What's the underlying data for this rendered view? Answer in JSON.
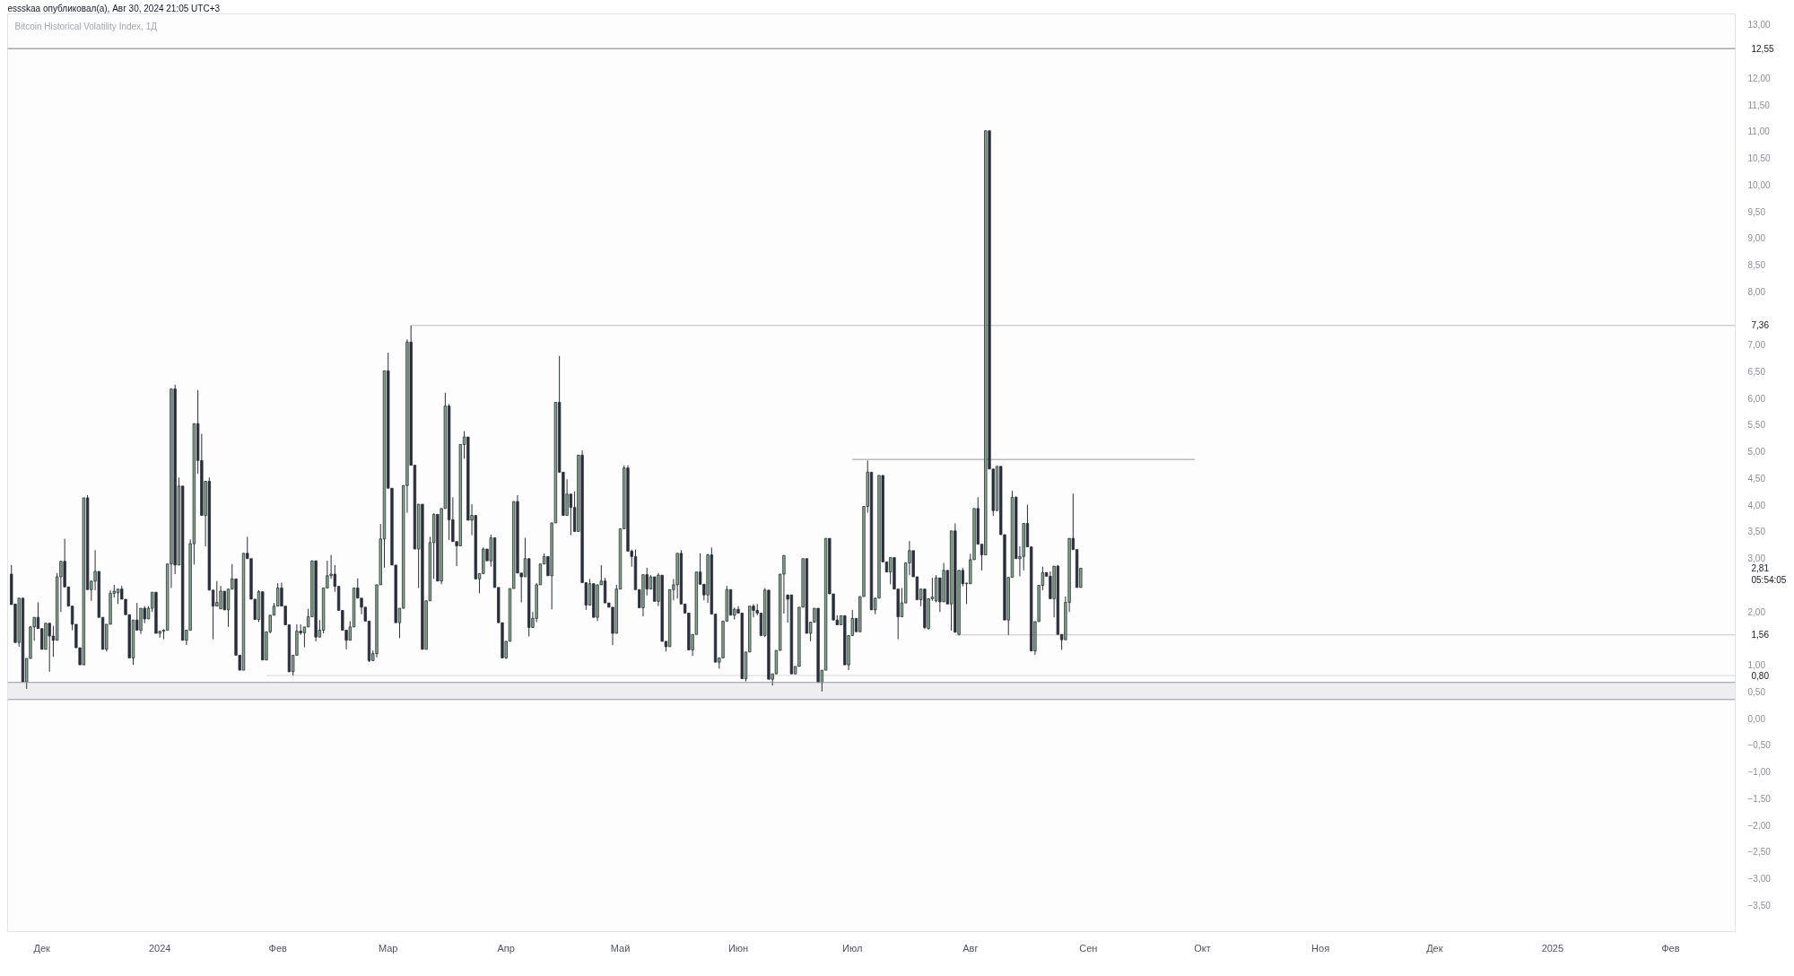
{
  "chart_data": {
    "type": "candlestick",
    "title": "Bitcoin Historical Volatility Index, 1Д",
    "annotations": [
      "essskaa опубликовал(а), Авг 30, 2024 21:05 UTC+3",
      "2,81",
      "05:54:05"
    ],
    "xlim": [
      "2023-11-22",
      "2025-02-18"
    ],
    "ylim": [
      -4.0,
      13.2
    ],
    "xticks": [
      {
        "value": "2023-12-01",
        "label": "Дек"
      },
      {
        "value": "2024-01-01",
        "label": "2024"
      },
      {
        "value": "2024-02-01",
        "label": "Фев"
      },
      {
        "value": "2024-03-01",
        "label": "Мар"
      },
      {
        "value": "2024-04-01",
        "label": "Апр"
      },
      {
        "value": "2024-05-01",
        "label": "Май"
      },
      {
        "value": "2024-06-01",
        "label": "Июн"
      },
      {
        "value": "2024-07-01",
        "label": "Июл"
      },
      {
        "value": "2024-08-01",
        "label": "Авг"
      },
      {
        "value": "2024-09-01",
        "label": "Сен"
      },
      {
        "value": "2024-10-01",
        "label": "Окт"
      },
      {
        "value": "2024-11-01",
        "label": "Ноя"
      },
      {
        "value": "2024-12-01",
        "label": "Дек"
      },
      {
        "value": "2025-01-01",
        "label": "2025"
      },
      {
        "value": "2025-02-01",
        "label": "Фев"
      }
    ],
    "yticks": [
      {
        "value": 13,
        "label": "13,00"
      },
      {
        "value": 12,
        "label": "12,00"
      },
      {
        "value": 11.5,
        "label": "11,50"
      },
      {
        "value": 11,
        "label": "11,00"
      },
      {
        "value": 10.5,
        "label": "10,50"
      },
      {
        "value": 10,
        "label": "10,00"
      },
      {
        "value": 9.5,
        "label": "9,50"
      },
      {
        "value": 9,
        "label": "9,00"
      },
      {
        "value": 8.5,
        "label": "8,50"
      },
      {
        "value": 8,
        "label": "8,00"
      },
      {
        "value": 7,
        "label": "7,00"
      },
      {
        "value": 6.5,
        "label": "6,50"
      },
      {
        "value": 6,
        "label": "6,00"
      },
      {
        "value": 5.5,
        "label": "5,50"
      },
      {
        "value": 5,
        "label": "5,00"
      },
      {
        "value": 4.5,
        "label": "4,50"
      },
      {
        "value": 4,
        "label": "4,00"
      },
      {
        "value": 3.5,
        "label": "3,50"
      },
      {
        "value": 3,
        "label": "3,00"
      },
      {
        "value": 2,
        "label": "2,00"
      },
      {
        "value": 1,
        "label": "1,00"
      },
      {
        "value": 0.5,
        "label": "0,50"
      },
      {
        "value": 0,
        "label": "0,00"
      },
      {
        "value": -0.5,
        "label": "−0,50"
      },
      {
        "value": -1,
        "label": "−1,00"
      },
      {
        "value": -1.5,
        "label": "−1,50"
      },
      {
        "value": -2,
        "label": "−2,00"
      },
      {
        "value": -2.5,
        "label": "−2,50"
      },
      {
        "value": -3,
        "label": "−3,00"
      },
      {
        "value": -3.5,
        "label": "−3,50"
      }
    ],
    "ref_lines": [
      {
        "axis": "y",
        "value": 12.55,
        "label": "12,55",
        "color": "#787b86"
      },
      {
        "axis": "y",
        "value": 0.67,
        "color": "#9598a1"
      },
      {
        "axis": "y",
        "value": 0.35,
        "color": "#9598a1"
      }
    ],
    "bands": [
      {
        "axis": "y",
        "from": 0.35,
        "to": 0.67,
        "color": "#eeeef0"
      }
    ],
    "series": [
      {
        "type": "line",
        "x": [
          "2024-03-07",
          "2025-02-18"
        ],
        "values": [
          7.36,
          7.36
        ],
        "value_labels": [
          null,
          "7,36"
        ],
        "color": "#b8bac1"
      },
      {
        "type": "line",
        "x": [
          "2024-07-01",
          "2024-09-29"
        ],
        "values": [
          4.85,
          4.85
        ],
        "color": "#9598a1"
      },
      {
        "type": "line",
        "x": [
          "2024-07-28",
          "2025-02-18"
        ],
        "values": [
          1.56,
          1.56
        ],
        "value_labels": [
          null,
          "1,56"
        ],
        "color": "#c4c6cc"
      },
      {
        "type": "line",
        "x": [
          "2024-01-29",
          "2025-02-18"
        ],
        "values": [
          0.8,
          0.8
        ],
        "value_labels": [
          null,
          "0,80"
        ],
        "color": "#d6d8de"
      }
    ],
    "x": [
      "2023-11-23",
      "2023-11-24",
      "2023-11-25",
      "2023-11-26",
      "2023-11-27",
      "2023-11-28",
      "2023-11-29",
      "2023-11-30",
      "2023-12-01",
      "2023-12-02",
      "2023-12-03",
      "2023-12-04",
      "2023-12-05",
      "2023-12-06",
      "2023-12-07",
      "2023-12-08",
      "2023-12-09",
      "2023-12-10",
      "2023-12-11",
      "2023-12-12",
      "2023-12-13",
      "2023-12-14",
      "2023-12-15",
      "2023-12-16",
      "2023-12-17",
      "2023-12-18",
      "2023-12-19",
      "2023-12-20",
      "2023-12-21",
      "2023-12-22",
      "2023-12-23",
      "2023-12-24",
      "2023-12-25",
      "2023-12-26",
      "2023-12-27",
      "2023-12-28",
      "2023-12-29",
      "2023-12-30",
      "2023-12-31",
      "2024-01-01",
      "2024-01-02",
      "2024-01-03",
      "2024-01-04",
      "2024-01-05",
      "2024-01-06",
      "2024-01-07",
      "2024-01-08",
      "2024-01-09",
      "2024-01-10",
      "2024-01-11",
      "2024-01-12",
      "2024-01-13",
      "2024-01-14",
      "2024-01-15",
      "2024-01-16",
      "2024-01-17",
      "2024-01-18",
      "2024-01-19",
      "2024-01-20",
      "2024-01-21",
      "2024-01-22",
      "2024-01-23",
      "2024-01-24",
      "2024-01-25",
      "2024-01-26",
      "2024-01-27",
      "2024-01-28",
      "2024-01-29",
      "2024-01-30",
      "2024-01-31",
      "2024-02-01",
      "2024-02-02",
      "2024-02-03",
      "2024-02-04",
      "2024-02-05",
      "2024-02-06",
      "2024-02-07",
      "2024-02-08",
      "2024-02-09",
      "2024-02-10",
      "2024-02-11",
      "2024-02-12",
      "2024-02-13",
      "2024-02-14",
      "2024-02-15",
      "2024-02-16",
      "2024-02-17",
      "2024-02-18",
      "2024-02-19",
      "2024-02-20",
      "2024-02-21",
      "2024-02-22",
      "2024-02-23",
      "2024-02-24",
      "2024-02-25",
      "2024-02-26",
      "2024-02-27",
      "2024-02-28",
      "2024-02-29",
      "2024-03-01",
      "2024-03-02",
      "2024-03-03",
      "2024-03-04",
      "2024-03-05",
      "2024-03-06",
      "2024-03-07",
      "2024-03-08",
      "2024-03-09",
      "2024-03-10",
      "2024-03-11",
      "2024-03-12",
      "2024-03-13",
      "2024-03-14",
      "2024-03-15",
      "2024-03-16",
      "2024-03-17",
      "2024-03-18",
      "2024-03-19",
      "2024-03-20",
      "2024-03-21",
      "2024-03-22",
      "2024-03-23",
      "2024-03-24",
      "2024-03-25",
      "2024-03-26",
      "2024-03-27",
      "2024-03-28",
      "2024-03-29",
      "2024-03-30",
      "2024-03-31",
      "2024-04-01",
      "2024-04-02",
      "2024-04-03",
      "2024-04-04",
      "2024-04-05",
      "2024-04-06",
      "2024-04-07",
      "2024-04-08",
      "2024-04-09",
      "2024-04-10",
      "2024-04-11",
      "2024-04-12",
      "2024-04-13",
      "2024-04-14",
      "2024-04-15",
      "2024-04-16",
      "2024-04-17",
      "2024-04-18",
      "2024-04-19",
      "2024-04-20",
      "2024-04-21",
      "2024-04-22",
      "2024-04-23",
      "2024-04-24",
      "2024-04-25",
      "2024-04-26",
      "2024-04-27",
      "2024-04-28",
      "2024-04-29",
      "2024-04-30",
      "2024-05-01",
      "2024-05-02",
      "2024-05-03",
      "2024-05-04",
      "2024-05-05",
      "2024-05-06",
      "2024-05-07",
      "2024-05-08",
      "2024-05-09",
      "2024-05-10",
      "2024-05-11",
      "2024-05-12",
      "2024-05-13",
      "2024-05-14",
      "2024-05-15",
      "2024-05-16",
      "2024-05-17",
      "2024-05-18",
      "2024-05-19",
      "2024-05-20",
      "2024-05-21",
      "2024-05-22",
      "2024-05-23",
      "2024-05-24",
      "2024-05-25",
      "2024-05-26",
      "2024-05-27",
      "2024-05-28",
      "2024-05-29",
      "2024-05-30",
      "2024-05-31",
      "2024-06-01",
      "2024-06-02",
      "2024-06-03",
      "2024-06-04",
      "2024-06-05",
      "2024-06-06",
      "2024-06-07",
      "2024-06-08",
      "2024-06-09",
      "2024-06-10",
      "2024-06-11",
      "2024-06-12",
      "2024-06-13",
      "2024-06-14",
      "2024-06-15",
      "2024-06-16",
      "2024-06-17",
      "2024-06-18",
      "2024-06-19",
      "2024-06-20",
      "2024-06-21",
      "2024-06-22",
      "2024-06-23",
      "2024-06-24",
      "2024-06-25",
      "2024-06-26",
      "2024-06-27",
      "2024-06-28",
      "2024-06-29",
      "2024-06-30",
      "2024-07-01",
      "2024-07-02",
      "2024-07-03",
      "2024-07-04",
      "2024-07-05",
      "2024-07-06",
      "2024-07-07",
      "2024-07-08",
      "2024-07-09",
      "2024-07-10",
      "2024-07-11",
      "2024-07-12",
      "2024-07-13",
      "2024-07-14",
      "2024-07-15",
      "2024-07-16",
      "2024-07-17",
      "2024-07-18",
      "2024-07-19",
      "2024-07-20",
      "2024-07-21",
      "2024-07-22",
      "2024-07-23",
      "2024-07-24",
      "2024-07-25",
      "2024-07-26",
      "2024-07-27",
      "2024-07-28",
      "2024-07-29",
      "2024-07-30",
      "2024-07-31",
      "2024-08-01",
      "2024-08-02",
      "2024-08-03",
      "2024-08-04",
      "2024-08-05",
      "2024-08-06",
      "2024-08-07",
      "2024-08-08",
      "2024-08-09",
      "2024-08-10",
      "2024-08-11",
      "2024-08-12",
      "2024-08-13",
      "2024-08-14",
      "2024-08-15",
      "2024-08-16",
      "2024-08-17",
      "2024-08-18",
      "2024-08-19",
      "2024-08-20",
      "2024-08-21",
      "2024-08-22",
      "2024-08-23",
      "2024-08-24",
      "2024-08-25",
      "2024-08-26",
      "2024-08-27",
      "2024-08-28",
      "2024-08-29",
      "2024-08-30"
    ],
    "ohlc": [
      [
        2.7,
        2.87,
        2.13,
        2.13
      ],
      [
        2.14,
        2.14,
        1.41,
        1.42
      ],
      [
        1.42,
        2.25,
        1.34,
        2.25
      ],
      [
        2.25,
        2.25,
        0.68,
        0.68
      ],
      [
        0.68,
        1.12,
        0.55,
        1.12
      ],
      [
        1.12,
        1.73,
        1.12,
        1.71
      ],
      [
        1.71,
        1.89,
        1.45,
        1.89
      ],
      [
        1.89,
        2.17,
        1.68,
        1.68
      ],
      [
        1.68,
        1.68,
        1.29,
        1.29
      ],
      [
        1.29,
        1.78,
        1.29,
        1.78
      ],
      [
        1.78,
        1.78,
        0.87,
        1.54
      ],
      [
        1.54,
        1.73,
        1.15,
        1.46
      ],
      [
        1.46,
        2.72,
        1.46,
        2.65
      ],
      [
        2.65,
        2.94,
        1.99,
        2.94
      ],
      [
        2.94,
        3.36,
        2.46,
        2.46
      ],
      [
        2.46,
        2.46,
        2.1,
        2.1
      ],
      [
        2.1,
        2.1,
        1.65,
        1.76
      ],
      [
        1.76,
        1.76,
        1.32,
        1.32
      ],
      [
        1.32,
        1.32,
        1.0,
        1.0
      ],
      [
        1.0,
        4.13,
        1.0,
        4.13
      ],
      [
        4.13,
        4.18,
        2.41,
        2.41
      ],
      [
        2.41,
        2.57,
        2.2,
        2.57
      ],
      [
        2.57,
        3.15,
        2.4,
        2.75
      ],
      [
        2.75,
        2.75,
        1.89,
        1.89
      ],
      [
        1.89,
        1.89,
        1.29,
        1.29
      ],
      [
        1.29,
        1.76,
        1.25,
        1.76
      ],
      [
        1.76,
        2.4,
        1.76,
        2.34
      ],
      [
        2.34,
        2.5,
        2.26,
        2.38
      ],
      [
        2.35,
        2.42,
        2.14,
        2.42
      ],
      [
        2.42,
        2.48,
        2.23,
        2.23
      ],
      [
        2.23,
        2.23,
        1.94,
        1.94
      ],
      [
        1.94,
        1.94,
        1.13,
        1.13
      ],
      [
        1.13,
        1.84,
        1.0,
        1.84
      ],
      [
        1.84,
        2.16,
        1.65,
        1.65
      ],
      [
        1.65,
        2.06,
        1.58,
        2.06
      ],
      [
        2.06,
        2.1,
        1.78,
        1.86
      ],
      [
        1.86,
        2.1,
        1.86,
        2.06
      ],
      [
        2.06,
        2.36,
        1.99,
        2.36
      ],
      [
        2.36,
        2.36,
        1.59,
        1.59
      ],
      [
        1.59,
        1.63,
        1.51,
        1.63
      ],
      [
        1.63,
        1.67,
        1.48,
        1.65
      ],
      [
        1.65,
        2.89,
        1.65,
        2.89
      ],
      [
        2.89,
        6.17,
        2.44,
        6.17
      ],
      [
        6.17,
        6.25,
        2.7,
        2.87
      ],
      [
        2.87,
        4.51,
        2.87,
        4.35
      ],
      [
        4.35,
        4.35,
        1.46,
        1.46
      ],
      [
        1.46,
        1.65,
        1.37,
        1.65
      ],
      [
        1.65,
        3.35,
        1.65,
        3.27
      ],
      [
        3.27,
        5.52,
        2.88,
        5.52
      ],
      [
        5.52,
        6.15,
        4.58,
        4.83
      ],
      [
        4.83,
        5.33,
        3.8,
        3.8
      ],
      [
        3.8,
        4.44,
        3.22,
        4.44
      ],
      [
        4.44,
        4.51,
        2.4,
        2.4
      ],
      [
        2.4,
        2.4,
        1.48,
        2.1
      ],
      [
        2.1,
        2.57,
        2.1,
        2.17
      ],
      [
        2.05,
        2.48,
        2.05,
        2.38
      ],
      [
        2.38,
        2.38,
        2.03,
        2.03
      ],
      [
        2.03,
        2.42,
        1.71,
        2.42
      ],
      [
        2.42,
        2.89,
        2.42,
        2.61
      ],
      [
        2.61,
        2.61,
        1.18,
        1.18
      ],
      [
        1.18,
        1.18,
        0.9,
        0.9
      ],
      [
        0.9,
        3.09,
        0.9,
        3.09
      ],
      [
        3.09,
        3.4,
        2.99,
        2.99
      ],
      [
        2.99,
        2.99,
        2.23,
        2.23
      ],
      [
        2.23,
        2.23,
        1.85,
        1.85
      ],
      [
        1.85,
        2.4,
        1.8,
        2.37
      ],
      [
        2.37,
        2.37,
        1.09,
        1.09
      ],
      [
        1.09,
        1.62,
        1.09,
        1.62
      ],
      [
        1.62,
        1.93,
        1.59,
        1.93
      ],
      [
        1.93,
        2.16,
        1.93,
        2.1
      ],
      [
        2.1,
        2.53,
        2.1,
        2.44
      ],
      [
        2.44,
        2.54,
        2.1,
        2.1
      ],
      [
        2.1,
        2.1,
        1.75,
        1.75
      ],
      [
        1.75,
        1.75,
        0.87,
        0.87
      ],
      [
        0.87,
        1.18,
        0.8,
        1.18
      ],
      [
        1.18,
        1.76,
        1.18,
        1.63
      ],
      [
        1.63,
        1.76,
        1.56,
        1.6
      ],
      [
        1.6,
        1.71,
        1.33,
        1.71
      ],
      [
        1.71,
        2.05,
        1.71,
        1.9
      ],
      [
        1.9,
        2.95,
        1.9,
        2.95
      ],
      [
        2.95,
        2.95,
        1.44,
        1.52
      ],
      [
        1.52,
        1.84,
        1.52,
        1.65
      ],
      [
        1.65,
        2.44,
        1.59,
        2.44
      ],
      [
        2.44,
        2.95,
        2.44,
        2.67
      ],
      [
        2.67,
        3.06,
        2.61,
        2.7
      ],
      [
        2.7,
        2.87,
        2.37,
        2.47
      ],
      [
        2.47,
        2.47,
        2.02,
        2.02
      ],
      [
        2.02,
        2.02,
        1.65,
        1.65
      ],
      [
        1.65,
        1.65,
        1.29,
        1.46
      ],
      [
        1.46,
        1.82,
        1.46,
        1.71
      ],
      [
        1.71,
        2.44,
        1.71,
        2.44
      ],
      [
        2.44,
        2.62,
        2.25,
        2.25
      ],
      [
        2.25,
        2.25,
        1.95,
        2.08
      ],
      [
        2.08,
        2.08,
        1.82,
        1.82
      ],
      [
        1.82,
        1.82,
        1.05,
        1.08
      ],
      [
        1.08,
        1.27,
        1.08,
        1.21
      ],
      [
        1.21,
        2.5,
        1.14,
        2.5
      ],
      [
        2.5,
        3.64,
        2.5,
        3.36
      ],
      [
        3.36,
        6.51,
        2.82,
        6.51
      ],
      [
        6.51,
        6.85,
        4.31,
        4.31
      ],
      [
        4.31,
        4.31,
        2.87,
        2.87
      ],
      [
        2.87,
        2.87,
        1.79,
        1.79
      ],
      [
        1.79,
        2.06,
        1.5,
        2.06
      ],
      [
        2.06,
        4.36,
        2.06,
        4.36
      ],
      [
        4.36,
        7.1,
        3.85,
        7.05
      ],
      [
        7.05,
        7.36,
        4.74,
        4.74
      ],
      [
        4.74,
        4.74,
        3.17,
        3.17
      ],
      [
        3.17,
        4.01,
        2.44,
        4.01
      ],
      [
        4.01,
        4.01,
        1.29,
        1.29
      ],
      [
        1.29,
        2.2,
        1.29,
        2.2
      ],
      [
        2.2,
        3.4,
        2.2,
        3.29
      ],
      [
        3.29,
        3.84,
        2.61,
        3.82
      ],
      [
        3.82,
        3.82,
        2.57,
        2.57
      ],
      [
        2.57,
        3.93,
        2.51,
        3.93
      ],
      [
        3.93,
        6.1,
        3.93,
        5.85
      ],
      [
        5.85,
        5.89,
        3.34,
        3.72
      ],
      [
        3.72,
        4.14,
        3.31,
        3.31
      ],
      [
        3.31,
        3.31,
        2.85,
        3.23
      ],
      [
        3.23,
        5.13,
        3.23,
        5.13
      ],
      [
        5.13,
        5.38,
        4.86,
        5.27
      ],
      [
        5.27,
        5.27,
        3.71,
        3.71
      ],
      [
        3.71,
        4.01,
        3.43,
        3.8
      ],
      [
        3.8,
        3.8,
        2.61,
        2.61
      ],
      [
        2.61,
        2.71,
        2.34,
        2.71
      ],
      [
        2.71,
        3.2,
        2.71,
        3.17
      ],
      [
        3.17,
        3.17,
        2.95,
        2.95
      ],
      [
        2.95,
        3.44,
        2.84,
        3.38
      ],
      [
        3.38,
        3.38,
        2.45,
        2.45
      ],
      [
        2.45,
        2.45,
        1.79,
        1.79
      ],
      [
        1.79,
        1.79,
        1.13,
        1.13
      ],
      [
        1.13,
        1.44,
        1.11,
        1.44
      ],
      [
        1.44,
        2.43,
        1.44,
        2.43
      ],
      [
        2.43,
        4.06,
        2.43,
        4.06
      ],
      [
        4.06,
        4.18,
        2.72,
        2.72
      ],
      [
        2.72,
        2.72,
        2.17,
        2.65
      ],
      [
        2.65,
        3.38,
        2.65,
        2.99
      ],
      [
        2.99,
        2.99,
        1.53,
        1.7
      ],
      [
        1.7,
        1.99,
        1.7,
        1.87
      ],
      [
        1.87,
        2.53,
        1.8,
        2.5
      ],
      [
        2.5,
        2.89,
        2.5,
        2.89
      ],
      [
        2.89,
        3.09,
        2.89,
        3.03
      ],
      [
        3.03,
        3.03,
        2.67,
        2.67
      ],
      [
        2.67,
        3.66,
        2.04,
        3.66
      ],
      [
        3.66,
        5.92,
        3.66,
        5.92
      ],
      [
        5.92,
        6.79,
        4.61,
        4.61
      ],
      [
        4.61,
        4.61,
        3.8,
        3.8
      ],
      [
        3.8,
        4.48,
        3.8,
        4.2
      ],
      [
        4.2,
        4.2,
        3.43,
        3.95
      ],
      [
        3.95,
        4.25,
        3.5,
        3.5
      ],
      [
        3.5,
        4.93,
        3.5,
        4.93
      ],
      [
        4.93,
        5.02,
        2.54,
        2.54
      ],
      [
        2.54,
        2.54,
        2.03,
        2.12
      ],
      [
        2.12,
        2.61,
        2.12,
        2.52
      ],
      [
        2.52,
        2.52,
        1.89,
        1.89
      ],
      [
        1.89,
        2.5,
        1.82,
        2.5
      ],
      [
        2.5,
        2.87,
        2.5,
        2.57
      ],
      [
        2.57,
        2.63,
        2.16,
        2.16
      ],
      [
        2.16,
        2.16,
        2.08,
        2.08
      ],
      [
        2.08,
        2.08,
        1.37,
        1.59
      ],
      [
        1.59,
        2.5,
        1.59,
        2.42
      ],
      [
        2.42,
        3.55,
        2.42,
        3.55
      ],
      [
        3.55,
        4.74,
        3.55,
        4.69
      ],
      [
        4.69,
        4.74,
        3.13,
        3.13
      ],
      [
        3.13,
        3.16,
        2.84,
        3.03
      ],
      [
        3.03,
        3.16,
        2.41,
        2.41
      ],
      [
        2.41,
        2.41,
        2.07,
        2.07
      ],
      [
        2.07,
        2.69,
        1.91,
        2.69
      ],
      [
        2.69,
        2.82,
        2.3,
        2.42
      ],
      [
        2.42,
        2.68,
        2.42,
        2.65
      ],
      [
        2.65,
        2.65,
        2.19,
        2.19
      ],
      [
        2.19,
        2.72,
        2.1,
        2.68
      ],
      [
        2.68,
        2.68,
        1.44,
        1.44
      ],
      [
        1.44,
        1.44,
        1.25,
        1.34
      ],
      [
        1.34,
        2.41,
        1.34,
        2.41
      ],
      [
        2.41,
        2.61,
        2.21,
        2.5
      ],
      [
        2.5,
        3.09,
        2.24,
        3.09
      ],
      [
        3.09,
        3.15,
        2.14,
        2.14
      ],
      [
        2.14,
        2.14,
        1.97,
        1.97
      ],
      [
        1.97,
        1.97,
        1.28,
        1.28
      ],
      [
        1.28,
        1.57,
        1.17,
        1.57
      ],
      [
        1.57,
        2.74,
        1.57,
        2.74
      ],
      [
        2.74,
        3.09,
        2.51,
        2.51
      ],
      [
        2.51,
        2.51,
        2.21,
        2.31
      ],
      [
        2.31,
        3.08,
        2.16,
        3.06
      ],
      [
        3.06,
        3.2,
        1.95,
        1.95
      ],
      [
        1.95,
        1.95,
        1.05,
        1.05
      ],
      [
        1.05,
        1.13,
        0.93,
        1.13
      ],
      [
        1.13,
        1.82,
        1.13,
        1.82
      ],
      [
        1.82,
        2.48,
        1.82,
        2.41
      ],
      [
        2.41,
        2.41,
        1.93,
        1.93
      ],
      [
        1.93,
        2.07,
        1.85,
        2.04
      ],
      [
        2.04,
        2.1,
        1.97,
        1.97
      ],
      [
        1.97,
        1.97,
        0.74,
        0.74
      ],
      [
        0.74,
        1.24,
        0.69,
        1.24
      ],
      [
        1.24,
        2.1,
        1.24,
        2.1
      ],
      [
        2.1,
        2.14,
        1.89,
        2.02
      ],
      [
        2.02,
        2.14,
        1.93,
        1.97
      ],
      [
        1.97,
        1.97,
        1.55,
        1.55
      ],
      [
        1.55,
        2.44,
        1.52,
        2.4
      ],
      [
        2.4,
        2.4,
        0.73,
        0.73
      ],
      [
        0.73,
        0.83,
        0.61,
        0.83
      ],
      [
        0.83,
        1.27,
        0.83,
        1.27
      ],
      [
        1.27,
        2.7,
        1.27,
        2.7
      ],
      [
        2.7,
        3.05,
        1.96,
        3.05
      ],
      [
        2.31,
        2.31,
        1.79,
        2.23
      ],
      [
        2.31,
        2.31,
        0.83,
        0.83
      ],
      [
        0.83,
        0.97,
        0.83,
        0.97
      ],
      [
        0.97,
        2.08,
        0.97,
        2.08
      ],
      [
        2.08,
        2.99,
        2.08,
        2.99
      ],
      [
        2.99,
        2.99,
        1.59,
        1.59
      ],
      [
        1.59,
        1.8,
        1.44,
        1.8
      ],
      [
        1.8,
        2.06,
        1.8,
        2.06
      ],
      [
        2.06,
        2.06,
        0.67,
        0.67
      ],
      [
        0.67,
        0.9,
        0.5,
        0.9
      ],
      [
        0.9,
        3.37,
        0.9,
        3.37
      ],
      [
        3.37,
        3.37,
        2.33,
        2.33
      ],
      [
        2.33,
        2.33,
        1.84,
        1.84
      ],
      [
        1.84,
        1.93,
        1.75,
        1.75
      ],
      [
        1.75,
        1.92,
        1.75,
        1.92
      ],
      [
        1.92,
        1.93,
        1.0,
        1.0
      ],
      [
        1.0,
        1.55,
        0.9,
        1.55
      ],
      [
        1.55,
        2.03,
        1.55,
        1.87
      ],
      [
        1.87,
        1.87,
        1.62,
        1.62
      ],
      [
        1.62,
        2.28,
        1.62,
        2.28
      ],
      [
        2.28,
        3.97,
        2.28,
        3.97
      ],
      [
        3.97,
        4.83,
        3.85,
        4.61
      ],
      [
        4.61,
        4.61,
        2.03,
        2.03
      ],
      [
        2.03,
        2.25,
        1.95,
        2.25
      ],
      [
        2.25,
        4.55,
        2.25,
        4.55
      ],
      [
        4.55,
        4.55,
        2.93,
        2.93
      ],
      [
        2.93,
        2.93,
        2.74,
        2.74
      ],
      [
        2.74,
        3.01,
        2.51,
        3.01
      ],
      [
        3.01,
        3.01,
        2.42,
        2.42
      ],
      [
        2.42,
        2.42,
        1.48,
        1.9
      ],
      [
        1.9,
        2.44,
        1.9,
        2.16
      ],
      [
        2.16,
        2.91,
        2.16,
        2.91
      ],
      [
        2.91,
        3.32,
        2.68,
        3.14
      ],
      [
        3.14,
        3.14,
        2.65,
        2.65
      ],
      [
        2.65,
        2.65,
        2.22,
        2.22
      ],
      [
        2.22,
        2.42,
        2.1,
        2.42
      ],
      [
        2.42,
        2.42,
        1.67,
        1.7
      ],
      [
        1.68,
        2.24,
        1.66,
        2.24
      ],
      [
        2.24,
        2.63,
        2.2,
        2.27
      ],
      [
        2.2,
        2.68,
        2.17,
        2.63
      ],
      [
        2.63,
        2.63,
        1.99,
        2.18
      ],
      [
        2.18,
        2.91,
        2.18,
        2.77
      ],
      [
        2.77,
        2.77,
        2.14,
        2.14
      ],
      [
        2.14,
        3.51,
        1.64,
        3.51
      ],
      [
        3.51,
        3.65,
        1.61,
        1.61
      ],
      [
        1.57,
        2.77,
        1.55,
        2.77
      ],
      [
        2.77,
        2.82,
        2.47,
        2.52
      ],
      [
        2.52,
        2.54,
        2.14,
        2.53
      ],
      [
        2.52,
        3.08,
        2.52,
        2.97
      ],
      [
        2.97,
        3.93,
        2.97,
        3.93
      ],
      [
        3.93,
        4.14,
        3.26,
        3.26
      ],
      [
        3.26,
        3.26,
        2.77,
        3.06
      ],
      [
        3.06,
        11.01,
        3.06,
        11.01
      ],
      [
        11.01,
        11.01,
        4.67,
        4.67
      ],
      [
        4.67,
        4.67,
        3.79,
        3.89
      ],
      [
        3.89,
        4.72,
        3.89,
        4.72
      ],
      [
        4.72,
        4.72,
        3.44,
        3.44
      ],
      [
        3.44,
        3.44,
        1.84,
        1.84
      ],
      [
        1.84,
        2.64,
        1.56,
        2.64
      ],
      [
        2.64,
        4.26,
        2.64,
        4.14
      ],
      [
        4.14,
        4.16,
        2.99,
        2.99
      ],
      [
        2.99,
        3.22,
        2.66,
        3.03
      ],
      [
        3.03,
        3.65,
        2.77,
        3.65
      ],
      [
        3.65,
        4.0,
        3.21,
        3.21
      ],
      [
        3.21,
        3.21,
        1.26,
        1.26
      ],
      [
        1.26,
        1.81,
        1.19,
        1.81
      ],
      [
        1.81,
        2.49,
        1.81,
        2.49
      ],
      [
        2.49,
        2.84,
        2.4,
        2.73
      ],
      [
        2.73,
        2.73,
        2.66,
        2.66
      ],
      [
        2.66,
        2.75,
        2.24,
        2.24
      ],
      [
        2.24,
        2.85,
        1.89,
        2.85
      ],
      [
        2.85,
        2.87,
        1.57,
        1.57
      ],
      [
        1.57,
        1.57,
        1.28,
        1.47
      ],
      [
        1.47,
        2.28,
        1.47,
        2.17
      ],
      [
        2.17,
        3.37,
        1.99,
        3.37
      ],
      [
        3.37,
        4.21,
        3.16,
        3.16
      ],
      [
        3.16,
        3.16,
        2.45,
        2.45
      ],
      [
        2.45,
        2.81,
        2.45,
        2.81
      ]
    ],
    "colors": [
      "#2a2e39",
      "#2a2e39",
      "#86a98a",
      "#2a2e39",
      "#86a98a",
      "#86a98a",
      "#86a98a",
      "#2a2e39",
      "#2a2e39",
      "#86a98a",
      "#2a2e39",
      "#2a2e39",
      "#86a98a",
      "#86a98a",
      "#2a2e39",
      "#2a2e39",
      "#2a2e39",
      "#2a2e39",
      "#2a2e39",
      "#86a98a",
      "#2a2e39",
      "#86a98a",
      "#86a98a",
      "#2a2e39",
      "#2a2e39",
      "#86a98a",
      "#86a98a",
      "#86a98a",
      "#86a98a",
      "#2a2e39",
      "#2a2e39",
      "#2a2e39",
      "#86a98a",
      "#2a2e39",
      "#86a98a",
      "#2a2e39",
      "#86a98a",
      "#86a98a",
      "#2a2e39",
      "#86a98a",
      "#86a98a",
      "#86a98a",
      "#86a98a",
      "#2a2e39",
      "#86a98a",
      "#2a2e39",
      "#86a98a",
      "#86a98a",
      "#86a98a",
      "#2a2e39",
      "#2a2e39",
      "#86a98a",
      "#2a2e39",
      "#2a2e39",
      "#86a98a",
      "#86a98a",
      "#2a2e39",
      "#86a98a",
      "#86a98a",
      "#2a2e39",
      "#2a2e39",
      "#86a98a",
      "#2a2e39",
      "#2a2e39",
      "#2a2e39",
      "#86a98a",
      "#2a2e39",
      "#86a98a",
      "#86a98a",
      "#86a98a",
      "#86a98a",
      "#2a2e39",
      "#2a2e39",
      "#2a2e39",
      "#86a98a",
      "#86a98a",
      "#2a2e39",
      "#86a98a",
      "#86a98a",
      "#86a98a",
      "#2a2e39",
      "#86a98a",
      "#86a98a",
      "#86a98a",
      "#86a98a",
      "#2a2e39",
      "#2a2e39",
      "#2a2e39",
      "#2a2e39",
      "#86a98a",
      "#86a98a",
      "#2a2e39",
      "#2a2e39",
      "#2a2e39",
      "#2a2e39",
      "#86a98a",
      "#86a98a",
      "#86a98a",
      "#86a98a",
      "#2a2e39",
      "#2a2e39",
      "#2a2e39",
      "#86a98a",
      "#86a98a",
      "#86a98a",
      "#2a2e39",
      "#2a2e39",
      "#86a98a",
      "#2a2e39",
      "#86a98a",
      "#86a98a",
      "#86a98a",
      "#2a2e39",
      "#86a98a",
      "#86a98a",
      "#2a2e39",
      "#2a2e39",
      "#2a2e39",
      "#86a98a",
      "#86a98a",
      "#2a2e39",
      "#86a98a",
      "#2a2e39",
      "#86a98a",
      "#86a98a",
      "#2a2e39",
      "#86a98a",
      "#2a2e39",
      "#2a2e39",
      "#2a2e39",
      "#86a98a",
      "#86a98a",
      "#86a98a",
      "#2a2e39",
      "#2a2e39",
      "#86a98a",
      "#2a2e39",
      "#86a98a",
      "#86a98a",
      "#86a98a",
      "#86a98a",
      "#2a2e39",
      "#86a98a",
      "#86a98a",
      "#2a2e39",
      "#2a2e39",
      "#86a98a",
      "#2a2e39",
      "#2a2e39",
      "#86a98a",
      "#2a2e39",
      "#2a2e39",
      "#86a98a",
      "#2a2e39",
      "#86a98a",
      "#86a98a",
      "#2a2e39",
      "#2a2e39",
      "#2a2e39",
      "#86a98a",
      "#86a98a",
      "#86a98a",
      "#2a2e39",
      "#2a2e39",
      "#2a2e39",
      "#2a2e39",
      "#86a98a",
      "#2a2e39",
      "#86a98a",
      "#2a2e39",
      "#86a98a",
      "#2a2e39",
      "#2a2e39",
      "#86a98a",
      "#86a98a",
      "#86a98a",
      "#2a2e39",
      "#2a2e39",
      "#2a2e39",
      "#86a98a",
      "#86a98a",
      "#2a2e39",
      "#2a2e39",
      "#86a98a",
      "#2a2e39",
      "#2a2e39",
      "#86a98a",
      "#86a98a",
      "#86a98a",
      "#2a2e39",
      "#86a98a",
      "#2a2e39",
      "#2a2e39",
      "#86a98a",
      "#86a98a",
      "#2a2e39",
      "#2a2e39",
      "#2a2e39",
      "#86a98a",
      "#2a2e39",
      "#86a98a",
      "#86a98a",
      "#86a98a",
      "#86a98a",
      "#2a2e39",
      "#2a2e39",
      "#86a98a",
      "#86a98a",
      "#86a98a",
      "#2a2e39",
      "#86a98a",
      "#86a98a",
      "#2a2e39",
      "#86a98a",
      "#86a98a",
      "#2a2e39",
      "#2a2e39",
      "#2a2e39",
      "#86a98a",
      "#2a2e39",
      "#86a98a",
      "#86a98a",
      "#2a2e39",
      "#86a98a",
      "#86a98a",
      "#86a98a",
      "#2a2e39",
      "#86a98a",
      "#86a98a",
      "#2a2e39",
      "#2a2e39",
      "#86a98a",
      "#2a2e39",
      "#2a2e39",
      "#86a98a",
      "#86a98a",
      "#86a98a",
      "#2a2e39",
      "#2a2e39",
      "#86a98a",
      "#2a2e39",
      "#86a98a",
      "#86a98a",
      "#86a98a",
      "#2a2e39",
      "#86a98a",
      "#2a2e39",
      "#86a98a",
      "#2a2e39",
      "#86a98a",
      "#2a2e39",
      "#86a98a",
      "#86a98a",
      "#86a98a",
      "#2a2e39",
      "#2a2e39",
      "#86a98a",
      "#2a2e39",
      "#2a2e39",
      "#86a98a",
      "#2a2e39",
      "#2a2e39",
      "#86a98a",
      "#86a98a",
      "#2a2e39",
      "#86a98a",
      "#86a98a",
      "#2a2e39",
      "#2a2e39",
      "#86a98a",
      "#86a98a",
      "#86a98a",
      "#2a2e39",
      "#2a2e39",
      "#86a98a",
      "#2a2e39",
      "#2a2e39",
      "#86a98a",
      "#86a98a",
      "#2a2e39",
      "#2a2e39",
      "#86a98a"
    ]
  }
}
